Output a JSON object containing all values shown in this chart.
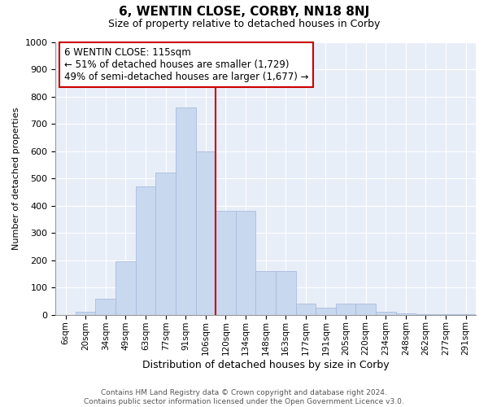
{
  "title": "6, WENTIN CLOSE, CORBY, NN18 8NJ",
  "subtitle": "Size of property relative to detached houses in Corby",
  "xlabel": "Distribution of detached houses by size in Corby",
  "ylabel": "Number of detached properties",
  "footer_line1": "Contains HM Land Registry data © Crown copyright and database right 2024.",
  "footer_line2": "Contains public sector information licensed under the Open Government Licence v3.0.",
  "categories": [
    "6sqm",
    "20sqm",
    "34sqm",
    "49sqm",
    "63sqm",
    "77sqm",
    "91sqm",
    "106sqm",
    "120sqm",
    "134sqm",
    "148sqm",
    "163sqm",
    "177sqm",
    "191sqm",
    "205sqm",
    "220sqm",
    "234sqm",
    "248sqm",
    "262sqm",
    "277sqm",
    "291sqm"
  ],
  "values": [
    0,
    10,
    60,
    195,
    470,
    520,
    760,
    600,
    380,
    380,
    160,
    160,
    40,
    25,
    42,
    42,
    10,
    5,
    2,
    2,
    2
  ],
  "bar_color": "#c8d8ee",
  "bar_edge_color": "#aabbdd",
  "background_color": "#e8eef8",
  "grid_color": "#ffffff",
  "vline_color": "#cc0000",
  "annotation_line1": "6 WENTIN CLOSE: 115sqm",
  "annotation_line2": "← 51% of detached houses are smaller (1,729)",
  "annotation_line3": "49% of semi-detached houses are larger (1,677) →",
  "annotation_box_color": "#ffffff",
  "annotation_box_edge": "#cc0000",
  "ylim": [
    0,
    1000
  ],
  "yticks": [
    0,
    100,
    200,
    300,
    400,
    500,
    600,
    700,
    800,
    900,
    1000
  ],
  "fig_bg": "#ffffff",
  "vline_index": 8
}
